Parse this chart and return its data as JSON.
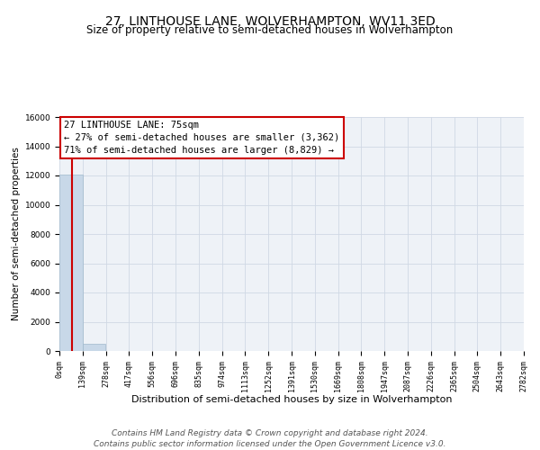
{
  "title": "27, LINTHOUSE LANE, WOLVERHAMPTON, WV11 3ED",
  "subtitle": "Size of property relative to semi-detached houses in Wolverhampton",
  "xlabel": "Distribution of semi-detached houses by size in Wolverhampton",
  "ylabel": "Number of semi-detached properties",
  "bin_edges": [
    0,
    139,
    278,
    417,
    556,
    696,
    835,
    974,
    1113,
    1252,
    1391,
    1530,
    1669,
    1808,
    1947,
    2087,
    2226,
    2365,
    2504,
    2643,
    2782
  ],
  "bin_labels": [
    "0sqm",
    "139sqm",
    "278sqm",
    "417sqm",
    "556sqm",
    "696sqm",
    "835sqm",
    "974sqm",
    "1113sqm",
    "1252sqm",
    "1391sqm",
    "1530sqm",
    "1669sqm",
    "1808sqm",
    "1947sqm",
    "2087sqm",
    "2226sqm",
    "2365sqm",
    "2504sqm",
    "2643sqm",
    "2782sqm"
  ],
  "bar_heights": [
    12050,
    520,
    0,
    0,
    0,
    0,
    0,
    0,
    0,
    0,
    0,
    0,
    0,
    0,
    0,
    0,
    0,
    0,
    0,
    0
  ],
  "bar_color": "#c8d8e8",
  "bar_edge_color": "#a0b8cc",
  "property_size": 75,
  "highlight_line_color": "#cc0000",
  "ylim": [
    0,
    16000
  ],
  "yticks": [
    0,
    2000,
    4000,
    6000,
    8000,
    10000,
    12000,
    14000,
    16000
  ],
  "annotation_box_color": "#ffffff",
  "annotation_box_edge_color": "#cc0000",
  "annotation_title": "27 LINTHOUSE LANE: 75sqm",
  "annotation_line1": "← 27% of semi-detached houses are smaller (3,362)",
  "annotation_line2": "71% of semi-detached houses are larger (8,829) →",
  "footer_line1": "Contains HM Land Registry data © Crown copyright and database right 2024.",
  "footer_line2": "Contains public sector information licensed under the Open Government Licence v3.0.",
  "bg_color": "#eef2f7",
  "grid_color": "#d0d8e4",
  "title_fontsize": 10,
  "subtitle_fontsize": 8.5,
  "annotation_fontsize": 7.5,
  "footer_fontsize": 6.5,
  "tick_fontsize": 6,
  "ylabel_fontsize": 7.5,
  "xlabel_fontsize": 8
}
